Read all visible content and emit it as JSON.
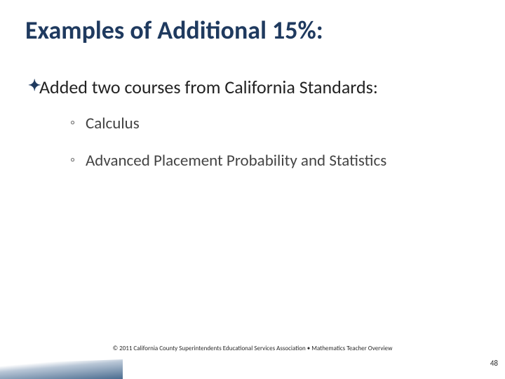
{
  "title": "Examples of Additional 15%:",
  "level1_bullet": "✦",
  "level1_text": "Added two courses from California Standards:",
  "sub_bullet_glyph": "◦",
  "sub_items": [
    "Calculus",
    "Advanced Placement Probability and Statistics"
  ],
  "footer": "© 2011 California County Superintendents Educational Services Association  •  Mathematics Teacher Overview",
  "page_number": "48",
  "colors": {
    "title": "#1f3a5f",
    "body": "#222222",
    "sub_bullet": "#7a7a7a",
    "sub_text": "#444444",
    "bg": "#ffffff"
  }
}
